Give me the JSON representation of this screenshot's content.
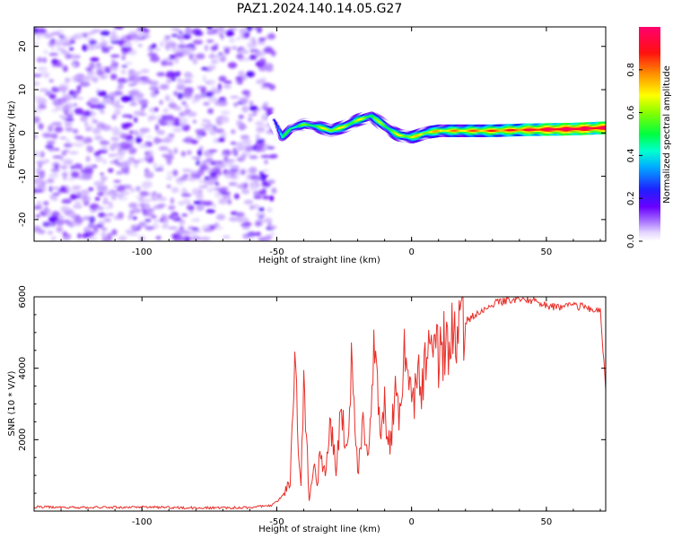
{
  "figure": {
    "title": "PAZ1.2024.140.14.05.G27"
  },
  "colors": {
    "background": "#ffffff",
    "axis": "#000000",
    "snr_line": "#e8302a",
    "noise_purple": "#7b2cf0",
    "colormap": [
      "#ffffff",
      "#dcc8ff",
      "#9b5cff",
      "#6a00ff",
      "#1f1fff",
      "#00c8ff",
      "#00ff66",
      "#66ff00",
      "#ffff00",
      "#ff8000",
      "#ff0000",
      "#ff0080"
    ]
  },
  "chart_data": [
    {
      "id": "spectrogram",
      "type": "heatmap",
      "title": "",
      "xlabel": "Height of straight line (km)",
      "ylabel": "Frequency (Hz)",
      "xlim": [
        -140,
        72
      ],
      "ylim": [
        -25,
        24.5
      ],
      "xticks": [
        -100,
        -50,
        0,
        50
      ],
      "yticks": [
        -20,
        -10,
        0,
        10,
        20
      ],
      "colorbar": {
        "label": "Normalized spectral amplitude",
        "range": [
          0,
          1
        ],
        "ticks": [
          "0.0",
          "0.2",
          "0.4",
          "0.6",
          "0.8"
        ],
        "tick_values": [
          0.0,
          0.2,
          0.4,
          0.6,
          0.8
        ]
      },
      "noise_region": {
        "x_range": [
          -140,
          -51
        ],
        "freq_range": [
          -25,
          24.5
        ],
        "amplitude": "low (0.05-0.2)"
      },
      "ridge": {
        "description": "signal frequency track",
        "x": [
          -51,
          -48,
          -45,
          -40,
          -35,
          -30,
          -25,
          -20,
          -15,
          -10,
          -5,
          0,
          5,
          10,
          20,
          30,
          40,
          50,
          60,
          72
        ],
        "freq": [
          3,
          -1,
          1,
          2,
          1.5,
          0.5,
          1.5,
          3,
          4,
          1.5,
          -0.5,
          -1,
          0,
          0.5,
          0.5,
          0.5,
          0.7,
          0.8,
          0.9,
          1.2
        ],
        "amplitude": [
          0.2,
          0.3,
          0.4,
          0.4,
          0.45,
          0.55,
          0.5,
          0.5,
          0.45,
          0.45,
          0.5,
          0.55,
          0.55,
          0.6,
          0.65,
          0.7,
          0.75,
          0.85,
          0.9,
          0.85
        ]
      }
    },
    {
      "id": "snr",
      "type": "line",
      "title": "",
      "xlabel": "Height of straight line (km)",
      "ylabel": "SNR (10 * V/V)",
      "xlim": [
        -140,
        72
      ],
      "ylim": [
        0,
        6000
      ],
      "xticks": [
        -100,
        -50,
        0,
        50
      ],
      "yticks": [
        2000,
        4000,
        6000
      ],
      "series": [
        {
          "x": [
            -140,
            -120,
            -100,
            -80,
            -60,
            -52,
            -48,
            -45,
            -43,
            -42,
            -41,
            -40,
            -38,
            -36,
            -35,
            -34,
            -32,
            -30,
            -28,
            -26,
            -24,
            -22,
            -20,
            -18,
            -16,
            -14,
            -12,
            -10,
            -8,
            -6,
            -4,
            -2,
            0,
            2,
            4,
            6,
            8,
            10,
            12,
            14,
            16,
            18,
            20,
            25,
            30,
            35,
            40,
            45,
            50,
            55,
            60,
            65,
            70,
            72
          ],
          "y": [
            120,
            100,
            110,
            90,
            100,
            150,
            400,
            800,
            4400,
            1500,
            900,
            3900,
            300,
            1200,
            600,
            1800,
            1000,
            2400,
            1200,
            2800,
            1700,
            4700,
            1000,
            2700,
            1500,
            4900,
            2400,
            2900,
            1900,
            3200,
            2600,
            5000,
            2800,
            3700,
            3500,
            4500,
            4100,
            4400,
            4600,
            4800,
            5000,
            5200,
            5300,
            5600,
            5800,
            5900,
            5950,
            5900,
            5750,
            5700,
            5750,
            5700,
            5600,
            3400
          ]
        }
      ]
    }
  ]
}
